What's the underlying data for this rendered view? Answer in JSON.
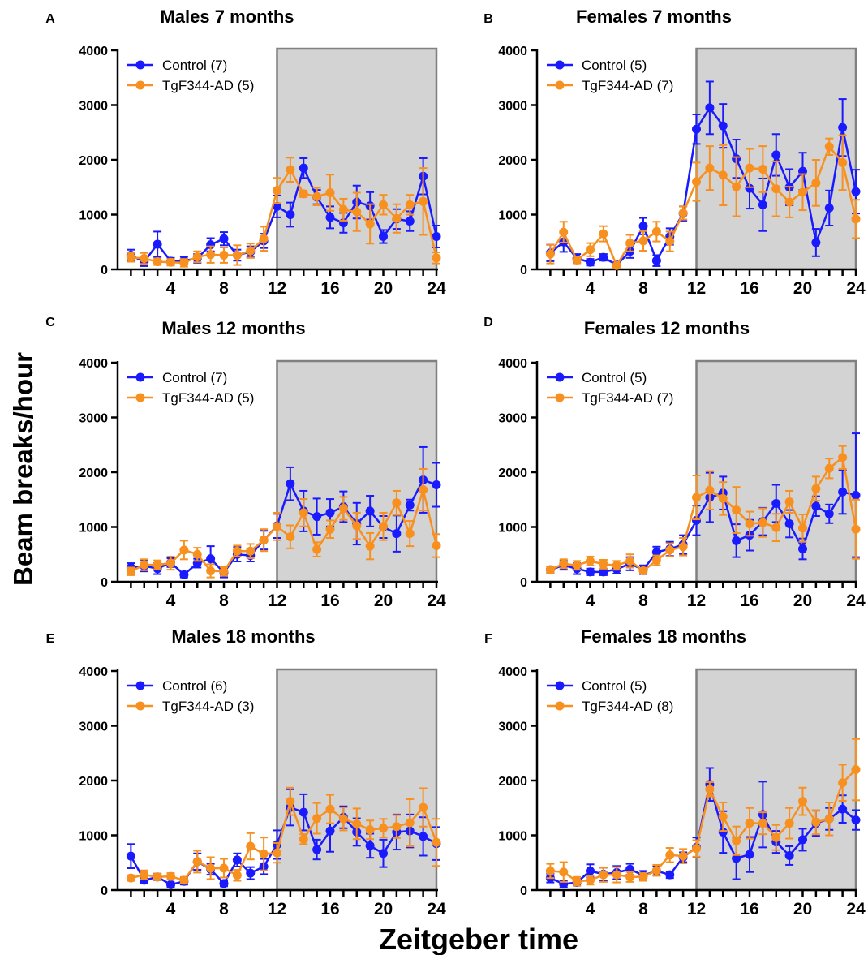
{
  "figure": {
    "ylabel": "Beam breaks/hour",
    "xlabel": "Zeitgeber time",
    "colors": {
      "control": "#1a1aff",
      "tg": "#f7901e",
      "dark_phase": "#d3d3d3",
      "dark_phase_border": "#808080"
    }
  },
  "chart_data": [
    {
      "type": "line",
      "panel_letter": "A",
      "title": "Males 7 months",
      "xlabel": "Zeitgeber time",
      "ylabel": "Beam breaks/hour",
      "xlim": [
        0,
        24
      ],
      "ylim": [
        0,
        4000
      ],
      "xticks": [
        4,
        8,
        12,
        16,
        20,
        24
      ],
      "yticks": [
        0,
        1000,
        2000,
        3000,
        4000
      ],
      "shaded_region": [
        12,
        24
      ],
      "legend_position": "top-left",
      "x": [
        1,
        2,
        3,
        4,
        5,
        6,
        7,
        8,
        9,
        10,
        11,
        12,
        13,
        14,
        15,
        16,
        17,
        18,
        19,
        20,
        21,
        22,
        23,
        24
      ],
      "series": [
        {
          "name": "Control (7)",
          "color": "#1a1aff",
          "values": [
            260,
            140,
            460,
            150,
            160,
            200,
            450,
            560,
            260,
            320,
            520,
            1150,
            1000,
            1850,
            1320,
            950,
            850,
            1230,
            1160,
            600,
            920,
            880,
            1700,
            600
          ],
          "errors": [
            100,
            80,
            230,
            60,
            70,
            80,
            120,
            120,
            100,
            100,
            130,
            200,
            220,
            180,
            130,
            200,
            180,
            300,
            250,
            120,
            180,
            180,
            330,
            200
          ]
        },
        {
          "name": "TgF344-AD (5)",
          "color": "#f7901e",
          "values": [
            220,
            200,
            140,
            130,
            120,
            230,
            270,
            260,
            260,
            340,
            560,
            1440,
            1820,
            1380,
            1330,
            1400,
            1090,
            1050,
            830,
            1180,
            930,
            1180,
            1240,
            210
          ],
          "errors": [
            80,
            100,
            60,
            60,
            70,
            100,
            150,
            140,
            180,
            130,
            220,
            230,
            220,
            60,
            160,
            330,
            200,
            350,
            360,
            180,
            260,
            180,
            610,
            100
          ]
        }
      ]
    },
    {
      "type": "line",
      "panel_letter": "B",
      "title": "Females 7 months",
      "xlabel": "Zeitgeber time",
      "ylabel": "Beam breaks/hour",
      "xlim": [
        0,
        24
      ],
      "ylim": [
        0,
        4000
      ],
      "xticks": [
        4,
        8,
        12,
        16,
        20,
        24
      ],
      "yticks": [
        0,
        1000,
        2000,
        3000,
        4000
      ],
      "shaded_region": [
        12,
        24
      ],
      "legend_position": "top-left",
      "x": [
        1,
        2,
        3,
        4,
        5,
        6,
        7,
        8,
        9,
        10,
        11,
        12,
        13,
        14,
        15,
        16,
        17,
        18,
        19,
        20,
        21,
        22,
        23,
        24
      ],
      "series": [
        {
          "name": "Control (5)",
          "color": "#1a1aff",
          "values": [
            300,
            500,
            200,
            130,
            220,
            80,
            330,
            790,
            160,
            600,
            1020,
            2560,
            2950,
            2620,
            2020,
            1480,
            1180,
            2090,
            1500,
            1790,
            490,
            1120,
            2590,
            1420
          ],
          "errors": [
            150,
            180,
            80,
            60,
            60,
            50,
            120,
            150,
            100,
            150,
            130,
            270,
            480,
            400,
            350,
            370,
            480,
            380,
            330,
            340,
            250,
            320,
            520,
            400
          ]
        },
        {
          "name": "TgF344-AD (7)",
          "color": "#f7901e",
          "values": [
            280,
            680,
            170,
            360,
            650,
            70,
            480,
            520,
            690,
            510,
            1030,
            1600,
            1850,
            1720,
            1510,
            1850,
            1830,
            1470,
            1230,
            1410,
            1580,
            2240,
            1950,
            920
          ],
          "errors": [
            170,
            190,
            60,
            120,
            140,
            40,
            150,
            180,
            180,
            180,
            120,
            350,
            400,
            550,
            540,
            350,
            420,
            500,
            280,
            330,
            420,
            150,
            500,
            350
          ]
        }
      ]
    },
    {
      "type": "line",
      "panel_letter": "C",
      "title": "Males 12 months",
      "xlabel": "Zeitgeber time",
      "ylabel": "Beam breaks/hour",
      "xlim": [
        0,
        24
      ],
      "ylim": [
        0,
        4000
      ],
      "xticks": [
        4,
        8,
        12,
        16,
        20,
        24
      ],
      "yticks": [
        0,
        1000,
        2000,
        3000,
        4000
      ],
      "shaded_region": [
        12,
        24
      ],
      "legend_position": "top-left",
      "x": [
        1,
        2,
        3,
        4,
        5,
        6,
        7,
        8,
        9,
        10,
        11,
        12,
        13,
        14,
        15,
        16,
        17,
        18,
        19,
        20,
        21,
        22,
        23,
        24
      ],
      "series": [
        {
          "name": "Control (7)",
          "color": "#1a1aff",
          "values": [
            260,
            290,
            240,
            350,
            130,
            340,
            420,
            170,
            500,
            480,
            760,
            1020,
            1790,
            1290,
            1190,
            1260,
            1370,
            1060,
            1290,
            1000,
            880,
            1400,
            1860,
            1770
          ],
          "errors": [
            80,
            100,
            100,
            80,
            50,
            80,
            230,
            90,
            130,
            110,
            170,
            220,
            300,
            370,
            330,
            250,
            280,
            380,
            280,
            200,
            330,
            100,
            600,
            400
          ]
        },
        {
          "name": "TgF344-AD (5)",
          "color": "#f7901e",
          "values": [
            190,
            310,
            310,
            340,
            580,
            500,
            200,
            190,
            560,
            560,
            760,
            1010,
            820,
            1260,
            590,
            960,
            1340,
            1020,
            650,
            1010,
            1440,
            880,
            1680,
            660
          ],
          "errors": [
            70,
            100,
            80,
            120,
            170,
            120,
            120,
            80,
            100,
            130,
            200,
            250,
            210,
            250,
            130,
            160,
            210,
            240,
            240,
            250,
            220,
            230,
            380,
            210
          ]
        }
      ]
    },
    {
      "type": "line",
      "panel_letter": "D",
      "title": "Females 12 months",
      "xlabel": "Zeitgeber time",
      "ylabel": "Beam breaks/hour",
      "xlim": [
        0,
        24
      ],
      "ylim": [
        0,
        4000
      ],
      "xticks": [
        4,
        8,
        12,
        16,
        20,
        24
      ],
      "yticks": [
        0,
        1000,
        2000,
        3000,
        4000
      ],
      "shaded_region": [
        12,
        24
      ],
      "legend_position": "top-left",
      "x": [
        1,
        2,
        3,
        4,
        5,
        6,
        7,
        8,
        9,
        10,
        11,
        12,
        13,
        14,
        15,
        16,
        17,
        18,
        19,
        20,
        21,
        22,
        23,
        24
      ],
      "series": [
        {
          "name": "Control (5)",
          "color": "#1a1aff",
          "values": [
            220,
            300,
            240,
            180,
            180,
            230,
            330,
            220,
            540,
            600,
            680,
            1120,
            1540,
            1620,
            750,
            850,
            1100,
            1430,
            1060,
            600,
            1380,
            1240,
            1640,
            1580
          ],
          "errors": [
            60,
            80,
            100,
            60,
            60,
            80,
            120,
            80,
            100,
            130,
            170,
            270,
            450,
            300,
            300,
            280,
            250,
            340,
            250,
            190,
            180,
            170,
            400,
            1130
          ]
        },
        {
          "name": "TgF344-AD (7)",
          "color": "#f7901e",
          "values": [
            220,
            330,
            300,
            380,
            320,
            300,
            380,
            200,
            390,
            580,
            640,
            1540,
            1670,
            1520,
            1310,
            1060,
            1080,
            990,
            1460,
            980,
            1700,
            2070,
            2270,
            960
          ],
          "errors": [
            60,
            80,
            80,
            80,
            80,
            80,
            120,
            50,
            90,
            120,
            160,
            400,
            350,
            300,
            420,
            220,
            260,
            250,
            200,
            250,
            220,
            180,
            210,
            540
          ]
        }
      ]
    },
    {
      "type": "line",
      "panel_letter": "E",
      "title": "Males 18 months",
      "xlabel": "Zeitgeber time",
      "ylabel": "Beam breaks/hour",
      "xlim": [
        0,
        24
      ],
      "ylim": [
        0,
        4000
      ],
      "xticks": [
        4,
        8,
        12,
        16,
        20,
        24
      ],
      "yticks": [
        0,
        1000,
        2000,
        3000,
        4000
      ],
      "shaded_region": [
        12,
        24
      ],
      "legend_position": "top-left",
      "x": [
        1,
        2,
        3,
        4,
        5,
        6,
        7,
        8,
        9,
        10,
        11,
        12,
        13,
        14,
        15,
        16,
        17,
        18,
        19,
        20,
        21,
        22,
        23,
        24
      ],
      "series": [
        {
          "name": "Control (6)",
          "color": "#1a1aff",
          "values": [
            620,
            180,
            240,
            100,
            160,
            520,
            380,
            120,
            550,
            310,
            430,
            830,
            1510,
            1420,
            740,
            1080,
            1330,
            1060,
            810,
            670,
            1060,
            1080,
            980,
            850
          ],
          "errors": [
            220,
            60,
            60,
            40,
            60,
            150,
            100,
            50,
            120,
            110,
            140,
            260,
            330,
            330,
            180,
            380,
            200,
            250,
            220,
            250,
            320,
            300,
            350,
            300
          ]
        },
        {
          "name": "TgF344-AD (3)",
          "color": "#f7901e",
          "values": [
            220,
            280,
            240,
            250,
            180,
            520,
            400,
            400,
            270,
            800,
            660,
            680,
            1620,
            930,
            1310,
            1480,
            1300,
            1210,
            1100,
            1130,
            1160,
            1230,
            1510,
            870
          ],
          "errors": [
            50,
            80,
            60,
            60,
            60,
            200,
            200,
            170,
            100,
            240,
            300,
            180,
            250,
            90,
            280,
            260,
            210,
            280,
            170,
            170,
            210,
            430,
            350,
            430
          ]
        }
      ]
    },
    {
      "type": "line",
      "panel_letter": "F",
      "title": "Females 18 months",
      "xlabel": "Zeitgeber time",
      "ylabel": "Beam breaks/hour",
      "xlim": [
        0,
        24
      ],
      "ylim": [
        0,
        4000
      ],
      "xticks": [
        4,
        8,
        12,
        16,
        20,
        24
      ],
      "yticks": [
        0,
        1000,
        2000,
        3000,
        4000
      ],
      "shaded_region": [
        12,
        24
      ],
      "legend_position": "top-left",
      "x": [
        1,
        2,
        3,
        4,
        5,
        6,
        7,
        8,
        9,
        10,
        11,
        12,
        13,
        14,
        15,
        16,
        17,
        18,
        19,
        20,
        21,
        22,
        23,
        24
      ],
      "series": [
        {
          "name": "Control (5)",
          "color": "#1a1aff",
          "values": [
            220,
            110,
            140,
            350,
            290,
            320,
            380,
            270,
            350,
            280,
            600,
            780,
            1930,
            1060,
            580,
            650,
            1380,
            880,
            630,
            920,
            1220,
            1300,
            1480,
            1280
          ],
          "errors": [
            80,
            60,
            60,
            120,
            120,
            120,
            100,
            80,
            80,
            60,
            90,
            180,
            300,
            380,
            380,
            320,
            600,
            200,
            170,
            200,
            230,
            200,
            250,
            180
          ]
        },
        {
          "name": "TgF344-AD (8)",
          "color": "#f7901e",
          "values": [
            350,
            330,
            160,
            180,
            280,
            280,
            240,
            240,
            360,
            640,
            620,
            760,
            1840,
            1340,
            900,
            1220,
            1220,
            960,
            1220,
            1620,
            1240,
            1300,
            1960,
            2200
          ],
          "errors": [
            130,
            180,
            80,
            80,
            130,
            140,
            90,
            70,
            100,
            130,
            130,
            150,
            130,
            260,
            260,
            280,
            200,
            230,
            280,
            250,
            220,
            300,
            330,
            560
          ]
        }
      ]
    }
  ]
}
